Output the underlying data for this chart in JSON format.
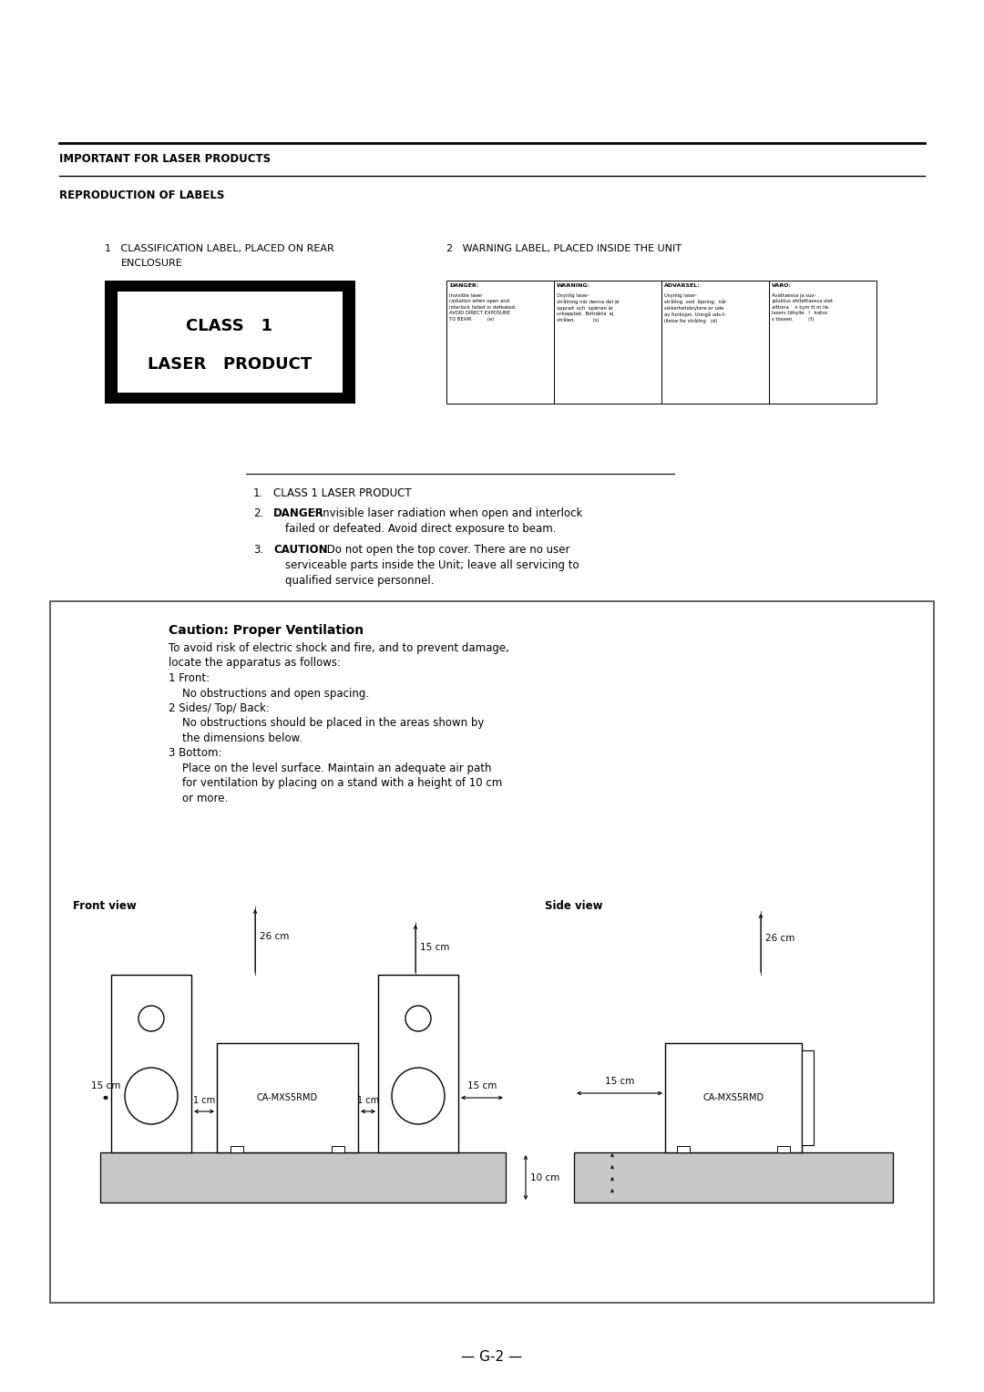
{
  "bg_color": "#ffffff",
  "page_width": 10.8,
  "page_height": 15.28,
  "title_main": "IMPORTANT FOR LASER PRODUCTS",
  "title_sub": "REPRODUCTION OF LABELS",
  "label1_line1": "1   CLASSIFICATION LABEL, PLACED ON REAR",
  "label1_line2": "    ENCLOSURE",
  "label2_title": "2   WARNING LABEL, PLACED INSIDE THE UNIT",
  "warn_headers": [
    "DANGER:",
    "WARNING:",
    "ADVARSEL:",
    "VARO:"
  ],
  "warn_texts": [
    "Invisible laser\nradiation when open and\ninterlock failed or defeated.\nAVOID DIRECT EXPOSURE\nTO BEAM.          (e)",
    "Osynlig laser-\nstrålning när denna del är\nopprad  och  spärren är\nurkopplad.  Beträkta  ej\nstrålen.            (s)",
    "Usynlig laser-\nstråling  ved  åpning,  når\nsikkerhetsbrytere er ude\nav funksjon. Unngå uds-t-\nillelse for stråling   (d)",
    "Avattaessa ja suo-\njaluktus ohitettaessa olet\nalttona    n kym tt m lle\nlasers tähylle.  l   katso\ns toseen.          (f)"
  ],
  "list_item1": "CLASS 1 LASER PRODUCT",
  "list_item2_bold": "DANGER",
  "list_item2_rest": ": Invisible laser radiation when open and interlock\n      failed or defeated. Avoid direct exposure to beam.",
  "list_item3_bold": "CAUTION",
  "list_item3_rest": ": Do not open the top cover. There are no user\n      serviceable parts inside the Unit; leave all servicing to\n      qualified service personnel.",
  "caution_title": "Caution: Proper Ventilation",
  "caution_body_lines": [
    "To avoid risk of electric shock and fire, and to prevent damage,",
    "locate the apparatus as follows:",
    "1 Front:",
    "    No obstructions and open spacing.",
    "2 Sides/ Top/ Back:",
    "    No obstructions should be placed in the areas shown by",
    "    the dimensions below.",
    "3 Bottom:",
    "    Place on the level surface. Maintain an adequate air path",
    "    for ventilation by placing on a stand with a height of 10 cm",
    "    or more."
  ],
  "front_view_label": "Front view",
  "side_view_label": "Side view",
  "model_name": "CA-MXS5RMD",
  "footer": "— G-2 —"
}
